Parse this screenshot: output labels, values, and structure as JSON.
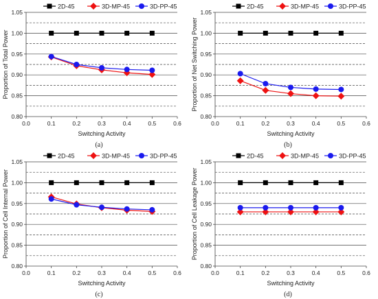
{
  "series_style": [
    {
      "name": "2D-45",
      "color": "#000000",
      "marker": "square"
    },
    {
      "name": "3D-MP-45",
      "color": "#ee1111",
      "marker": "diamond"
    },
    {
      "name": "3D-PP-45",
      "color": "#1a1aee",
      "marker": "circle"
    }
  ],
  "chart_data": [
    {
      "type": "line",
      "caption": "(a)",
      "xlabel": "Switching Activity",
      "ylabel": "Proportion of Total Power",
      "xlim": [
        0.0,
        0.6
      ],
      "ylim": [
        0.8,
        1.05
      ],
      "xticks": [
        "0.0",
        "0.1",
        "0.2",
        "0.3",
        "0.4",
        "0.5",
        "0.6"
      ],
      "yticks": [
        "0.80",
        "0.85",
        "0.90",
        "0.95",
        "1.00",
        "1.05"
      ],
      "x": [
        0.1,
        0.2,
        0.3,
        0.4,
        0.5
      ],
      "series": [
        {
          "name": "2D-45",
          "values": [
            1.0,
            1.0,
            1.0,
            1.0,
            1.0
          ]
        },
        {
          "name": "3D-MP-45",
          "values": [
            0.943,
            0.922,
            0.912,
            0.905,
            0.901
          ]
        },
        {
          "name": "3D-PP-45",
          "values": [
            0.944,
            0.925,
            0.917,
            0.913,
            0.911
          ]
        }
      ]
    },
    {
      "type": "line",
      "caption": "(b)",
      "xlabel": "Switching Activity",
      "ylabel": "Proportion of Net Switching Power",
      "xlim": [
        0.0,
        0.6
      ],
      "ylim": [
        0.8,
        1.05
      ],
      "xticks": [
        "0.0",
        "0.1",
        "0.2",
        "0.3",
        "0.4",
        "0.5",
        "0.6"
      ],
      "yticks": [
        "0.80",
        "0.85",
        "0.90",
        "0.95",
        "1.00",
        "1.05"
      ],
      "x": [
        0.1,
        0.2,
        0.3,
        0.4,
        0.5
      ],
      "series": [
        {
          "name": "2D-45",
          "values": [
            1.0,
            1.0,
            1.0,
            1.0,
            1.0
          ]
        },
        {
          "name": "3D-MP-45",
          "values": [
            0.886,
            0.863,
            0.855,
            0.85,
            0.849
          ]
        },
        {
          "name": "3D-PP-45",
          "values": [
            0.903,
            0.879,
            0.87,
            0.866,
            0.865
          ]
        }
      ]
    },
    {
      "type": "line",
      "caption": "(c)",
      "xlabel": "Switching Activity",
      "ylabel": "Proportion of Cell Internal Power",
      "xlim": [
        0.0,
        0.6
      ],
      "ylim": [
        0.8,
        1.05
      ],
      "xticks": [
        "0.0",
        "0.1",
        "0.2",
        "0.3",
        "0.4",
        "0.5",
        "0.6"
      ],
      "yticks": [
        "0.80",
        "0.85",
        "0.90",
        "0.95",
        "1.00",
        "1.05"
      ],
      "x": [
        0.1,
        0.2,
        0.3,
        0.4,
        0.5
      ],
      "series": [
        {
          "name": "2D-45",
          "values": [
            1.0,
            1.0,
            1.0,
            1.0,
            1.0
          ]
        },
        {
          "name": "3D-MP-45",
          "values": [
            0.966,
            0.949,
            0.94,
            0.934,
            0.931
          ]
        },
        {
          "name": "3D-PP-45",
          "values": [
            0.961,
            0.947,
            0.941,
            0.937,
            0.935
          ]
        }
      ]
    },
    {
      "type": "line",
      "caption": "(d)",
      "xlabel": "Switching Activity",
      "ylabel": "Proportion of Cell Leakage Power",
      "xlim": [
        0.0,
        0.6
      ],
      "ylim": [
        0.8,
        1.05
      ],
      "xticks": [
        "0.0",
        "0.1",
        "0.2",
        "0.3",
        "0.4",
        "0.5",
        "0.6"
      ],
      "yticks": [
        "0.80",
        "0.85",
        "0.90",
        "0.95",
        "1.00",
        "1.05"
      ],
      "x": [
        0.1,
        0.2,
        0.3,
        0.4,
        0.5
      ],
      "series": [
        {
          "name": "2D-45",
          "values": [
            1.0,
            1.0,
            1.0,
            1.0,
            1.0
          ]
        },
        {
          "name": "3D-MP-45",
          "values": [
            0.93,
            0.93,
            0.93,
            0.93,
            0.93
          ]
        },
        {
          "name": "3D-PP-45",
          "values": [
            0.94,
            0.94,
            0.94,
            0.94,
            0.94
          ]
        }
      ]
    }
  ]
}
